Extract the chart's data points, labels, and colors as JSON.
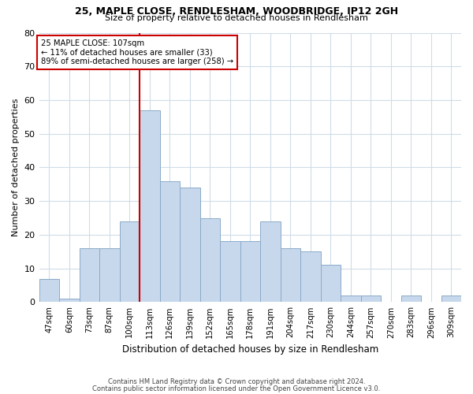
{
  "title1": "25, MAPLE CLOSE, RENDLESHAM, WOODBRIDGE, IP12 2GH",
  "title2": "Size of property relative to detached houses in Rendlesham",
  "xlabel": "Distribution of detached houses by size in Rendlesham",
  "ylabel": "Number of detached properties",
  "footnote1": "Contains HM Land Registry data © Crown copyright and database right 2024.",
  "footnote2": "Contains public sector information licensed under the Open Government Licence v3.0.",
  "annotation_line1": "25 MAPLE CLOSE: 107sqm",
  "annotation_line2": "← 11% of detached houses are smaller (33)",
  "annotation_line3": "89% of semi-detached houses are larger (258) →",
  "property_line_index": 5,
  "categories": [
    "47sqm",
    "60sqm",
    "73sqm",
    "87sqm",
    "100sqm",
    "113sqm",
    "126sqm",
    "139sqm",
    "152sqm",
    "165sqm",
    "178sqm",
    "191sqm",
    "204sqm",
    "217sqm",
    "230sqm",
    "244sqm",
    "257sqm",
    "270sqm",
    "283sqm",
    "296sqm",
    "309sqm"
  ],
  "values": [
    7,
    1,
    16,
    16,
    24,
    57,
    36,
    34,
    25,
    18,
    18,
    24,
    16,
    15,
    11,
    2,
    2,
    0,
    2,
    0,
    2
  ],
  "bar_color": "#c8d8ec",
  "bar_edge_color": "#8aaac8",
  "highlight_line_color": "#cc0000",
  "box_edge_color": "#cc0000",
  "background_color": "#ffffff",
  "grid_color": "#d0dce8",
  "ylim": [
    0,
    80
  ],
  "yticks": [
    0,
    10,
    20,
    30,
    40,
    50,
    60,
    70,
    80
  ]
}
